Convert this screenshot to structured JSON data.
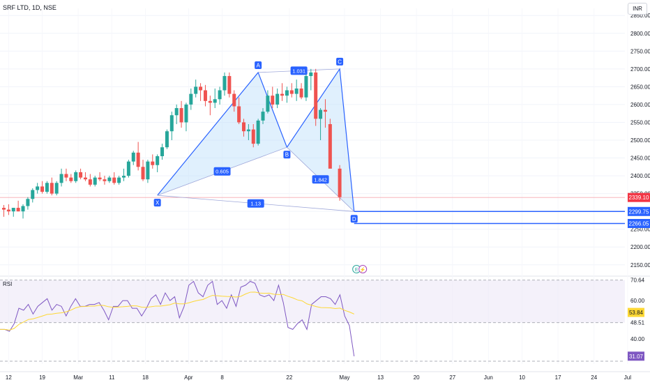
{
  "header": {
    "symbol": "SRF LTD, 1D, NSE",
    "currency": "INR"
  },
  "colors": {
    "up": "#26a69a",
    "down": "#ef5350",
    "pattern": "#2962ff",
    "pattern_fill": "#bbdefb",
    "rsi_line": "#7e57c2",
    "rsi_ma": "#fdd835",
    "rsi_band": "#ede7f6",
    "last_price": "#f23645"
  },
  "price_axis": {
    "ticks": [
      "2850.00",
      "2800.00",
      "2750.00",
      "2700.00",
      "2650.00",
      "2600.00",
      "2550.00",
      "2500.00",
      "2450.00",
      "2400.00",
      "2350.00",
      "2300.00",
      "2250.00",
      "2200.00",
      "2150.00"
    ]
  },
  "price_labels": {
    "last": "2339.10",
    "level_1": "2299.75",
    "level_2": "2266.05"
  },
  "time_axis": {
    "labels": [
      "12",
      "19",
      "Mar",
      "11",
      "18",
      "Apr",
      "8",
      "22",
      "May",
      "13",
      "20",
      "27",
      "Jun",
      "10",
      "17",
      "24",
      "Jul"
    ]
  },
  "harmonic": {
    "points": [
      "X",
      "A",
      "B",
      "C",
      "D"
    ],
    "ratios": [
      "0.605",
      "1.031",
      "1.842",
      "1.13"
    ]
  },
  "event_icons": {
    "earnings": "E",
    "dividend": "⚡"
  },
  "rsi": {
    "title": "RSI",
    "ticks": [
      "70.64",
      "60.00",
      "48.51",
      "40.00"
    ],
    "last_labels": {
      "rsi": "31.07",
      "ma": "53.84"
    },
    "values": [
      45,
      45,
      44,
      48,
      56,
      55,
      58,
      53,
      57,
      59,
      61,
      55,
      58,
      57,
      52,
      57,
      61,
      57,
      57,
      58,
      58,
      59,
      55,
      50,
      57,
      57,
      60,
      60,
      56,
      56,
      52,
      56,
      61,
      63,
      58,
      64,
      60,
      62,
      51,
      57,
      68,
      70,
      64,
      62,
      68,
      70,
      58,
      60,
      56,
      63,
      57,
      67,
      68,
      70,
      69,
      63,
      62,
      63,
      60,
      68,
      59,
      46,
      45,
      48,
      50,
      45,
      58,
      60,
      62,
      62,
      61,
      58,
      63,
      52,
      47,
      31
    ]
  },
  "chart_data": {
    "type": "candlestick",
    "title": "SRF LTD, 1D, NSE",
    "ylim": [
      2130,
      2870
    ],
    "x_ticks": [
      "12",
      "19",
      "Mar",
      "11",
      "18",
      "Apr",
      "8",
      "22",
      "May",
      "13",
      "20",
      "27",
      "Jun",
      "10",
      "17",
      "24",
      "Jul"
    ],
    "candles": [
      {
        "o": 2310,
        "h": 2318,
        "l": 2285,
        "c": 2305
      },
      {
        "o": 2305,
        "h": 2320,
        "l": 2290,
        "c": 2300
      },
      {
        "o": 2300,
        "h": 2310,
        "l": 2285,
        "c": 2310
      },
      {
        "o": 2310,
        "h": 2330,
        "l": 2300,
        "c": 2300
      },
      {
        "o": 2300,
        "h": 2320,
        "l": 2280,
        "c": 2315
      },
      {
        "o": 2315,
        "h": 2340,
        "l": 2305,
        "c": 2335
      },
      {
        "o": 2335,
        "h": 2365,
        "l": 2325,
        "c": 2360
      },
      {
        "o": 2360,
        "h": 2380,
        "l": 2350,
        "c": 2370
      },
      {
        "o": 2370,
        "h": 2385,
        "l": 2350,
        "c": 2355
      },
      {
        "o": 2355,
        "h": 2385,
        "l": 2350,
        "c": 2380
      },
      {
        "o": 2380,
        "h": 2395,
        "l": 2345,
        "c": 2350
      },
      {
        "o": 2350,
        "h": 2385,
        "l": 2345,
        "c": 2380
      },
      {
        "o": 2380,
        "h": 2420,
        "l": 2370,
        "c": 2405
      },
      {
        "o": 2405,
        "h": 2420,
        "l": 2385,
        "c": 2395
      },
      {
        "o": 2395,
        "h": 2405,
        "l": 2380,
        "c": 2385
      },
      {
        "o": 2385,
        "h": 2415,
        "l": 2380,
        "c": 2410
      },
      {
        "o": 2410,
        "h": 2420,
        "l": 2390,
        "c": 2395
      },
      {
        "o": 2395,
        "h": 2410,
        "l": 2385,
        "c": 2390
      },
      {
        "o": 2390,
        "h": 2405,
        "l": 2370,
        "c": 2375
      },
      {
        "o": 2375,
        "h": 2400,
        "l": 2370,
        "c": 2395
      },
      {
        "o": 2395,
        "h": 2410,
        "l": 2385,
        "c": 2390
      },
      {
        "o": 2390,
        "h": 2400,
        "l": 2375,
        "c": 2385
      },
      {
        "o": 2385,
        "h": 2400,
        "l": 2380,
        "c": 2395
      },
      {
        "o": 2395,
        "h": 2410,
        "l": 2375,
        "c": 2380
      },
      {
        "o": 2380,
        "h": 2400,
        "l": 2375,
        "c": 2395
      },
      {
        "o": 2395,
        "h": 2420,
        "l": 2385,
        "c": 2400
      },
      {
        "o": 2400,
        "h": 2445,
        "l": 2395,
        "c": 2440
      },
      {
        "o": 2440,
        "h": 2470,
        "l": 2430,
        "c": 2465
      },
      {
        "o": 2465,
        "h": 2495,
        "l": 2415,
        "c": 2425
      },
      {
        "o": 2425,
        "h": 2445,
        "l": 2385,
        "c": 2390
      },
      {
        "o": 2390,
        "h": 2445,
        "l": 2380,
        "c": 2440
      },
      {
        "o": 2440,
        "h": 2460,
        "l": 2420,
        "c": 2430
      },
      {
        "o": 2430,
        "h": 2460,
        "l": 2410,
        "c": 2455
      },
      {
        "o": 2455,
        "h": 2490,
        "l": 2445,
        "c": 2480
      },
      {
        "o": 2480,
        "h": 2530,
        "l": 2475,
        "c": 2525
      },
      {
        "o": 2525,
        "h": 2580,
        "l": 2500,
        "c": 2570
      },
      {
        "o": 2570,
        "h": 2600,
        "l": 2545,
        "c": 2590
      },
      {
        "o": 2590,
        "h": 2610,
        "l": 2535,
        "c": 2550
      },
      {
        "o": 2550,
        "h": 2605,
        "l": 2525,
        "c": 2600
      },
      {
        "o": 2600,
        "h": 2645,
        "l": 2585,
        "c": 2630
      },
      {
        "o": 2630,
        "h": 2670,
        "l": 2620,
        "c": 2650
      },
      {
        "o": 2650,
        "h": 2660,
        "l": 2610,
        "c": 2640
      },
      {
        "o": 2640,
        "h": 2655,
        "l": 2595,
        "c": 2610
      },
      {
        "o": 2610,
        "h": 2625,
        "l": 2570,
        "c": 2605
      },
      {
        "o": 2605,
        "h": 2645,
        "l": 2590,
        "c": 2615
      },
      {
        "o": 2615,
        "h": 2650,
        "l": 2600,
        "c": 2640
      },
      {
        "o": 2640,
        "h": 2690,
        "l": 2625,
        "c": 2680
      },
      {
        "o": 2680,
        "h": 2690,
        "l": 2620,
        "c": 2630
      },
      {
        "o": 2630,
        "h": 2640,
        "l": 2580,
        "c": 2595
      },
      {
        "o": 2595,
        "h": 2620,
        "l": 2545,
        "c": 2550
      },
      {
        "o": 2550,
        "h": 2560,
        "l": 2510,
        "c": 2525
      },
      {
        "o": 2525,
        "h": 2545,
        "l": 2500,
        "c": 2530
      },
      {
        "o": 2530,
        "h": 2545,
        "l": 2480,
        "c": 2490
      },
      {
        "o": 2490,
        "h": 2560,
        "l": 2485,
        "c": 2555
      },
      {
        "o": 2555,
        "h": 2590,
        "l": 2545,
        "c": 2580
      },
      {
        "o": 2580,
        "h": 2640,
        "l": 2575,
        "c": 2625
      },
      {
        "o": 2625,
        "h": 2650,
        "l": 2590,
        "c": 2600
      },
      {
        "o": 2600,
        "h": 2645,
        "l": 2590,
        "c": 2630
      },
      {
        "o": 2630,
        "h": 2660,
        "l": 2610,
        "c": 2625
      },
      {
        "o": 2625,
        "h": 2650,
        "l": 2605,
        "c": 2640
      },
      {
        "o": 2640,
        "h": 2660,
        "l": 2620,
        "c": 2630
      },
      {
        "o": 2630,
        "h": 2670,
        "l": 2610,
        "c": 2645
      },
      {
        "o": 2645,
        "h": 2660,
        "l": 2615,
        "c": 2620
      },
      {
        "o": 2620,
        "h": 2685,
        "l": 2610,
        "c": 2680
      },
      {
        "o": 2680,
        "h": 2700,
        "l": 2640,
        "c": 2690
      },
      {
        "o": 2690,
        "h": 2700,
        "l": 2540,
        "c": 2560
      },
      {
        "o": 2560,
        "h": 2590,
        "l": 2500,
        "c": 2585
      },
      {
        "o": 2585,
        "h": 2615,
        "l": 2535,
        "c": 2580
      },
      {
        "o": 2545,
        "h": 2560,
        "l": 2425,
        "c": 2420
      },
      {
        "o": 2420,
        "h": 2430,
        "l": 2330,
        "c": 2340
      }
    ],
    "candle_slots": [
      0,
      1,
      2,
      3,
      4,
      5,
      6,
      7,
      8,
      9,
      10,
      11,
      12,
      13,
      14,
      15,
      16,
      17,
      18,
      19,
      20,
      21,
      22,
      23,
      24,
      25,
      26,
      27,
      28,
      29,
      30,
      31,
      32,
      33,
      34,
      35,
      36,
      37,
      38,
      39,
      40,
      41,
      42,
      43,
      44,
      45,
      46,
      47,
      48,
      49,
      50,
      51,
      52,
      53,
      54,
      55,
      56,
      57,
      58,
      59,
      60,
      61,
      62,
      63,
      64,
      65,
      66,
      67,
      68,
      70
    ],
    "harmonic_points": [
      {
        "label": "X",
        "slot": 32,
        "price": 2345
      },
      {
        "label": "A",
        "slot": 53,
        "price": 2690
      },
      {
        "label": "B",
        "slot": 59,
        "price": 2480
      },
      {
        "label": "C",
        "slot": 70,
        "price": 2700
      },
      {
        "label": "D",
        "slot": 73,
        "price": 2299.75
      }
    ],
    "levels": [
      {
        "price": 2339.1,
        "name": "last"
      },
      {
        "price": 2299.75,
        "name": "level_1"
      },
      {
        "price": 2266.05,
        "name": "level_2"
      }
    ],
    "rsi": {
      "range": [
        27,
        72
      ],
      "upper": 70.64,
      "lower": 48.51,
      "last": 31.07,
      "ma_last": 53.84
    }
  }
}
